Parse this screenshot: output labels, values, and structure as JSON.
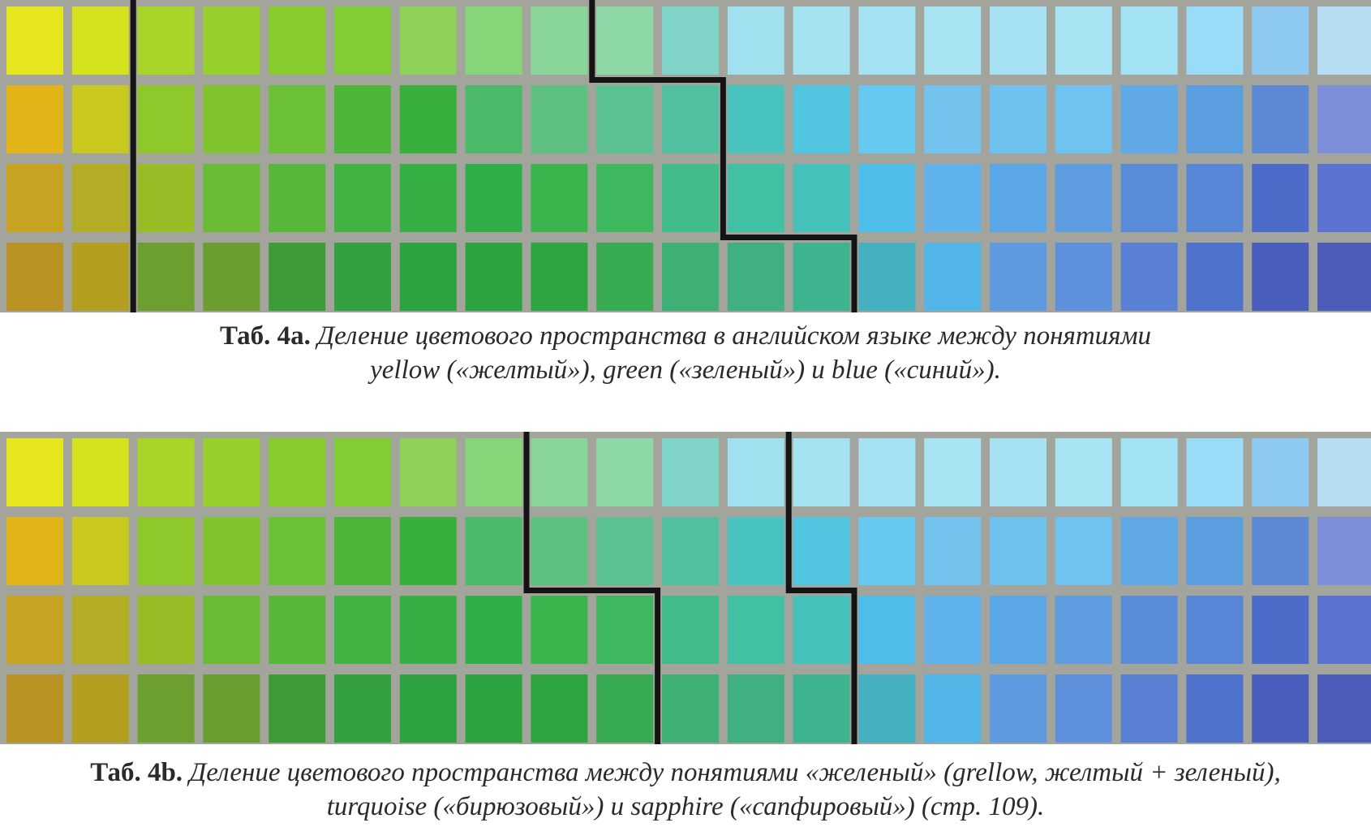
{
  "palette": [
    [
      "#e6e61f",
      "#d4e21e",
      "#a8d52a",
      "#97d02c",
      "#88cc2e",
      "#82cc36",
      "#8dd15a",
      "#86d578",
      "#8ad69a",
      "#8ed8a8",
      "#80d5c8",
      "#a1e0ee",
      "#a5e2f2",
      "#a4e2f4",
      "#a8e3f4",
      "#a6e2f4",
      "#a8e3f4",
      "#a4e2f5",
      "#98dcf7",
      "#8ecaef",
      "#b6dcf3"
    ],
    [
      "#e3b418",
      "#c8c81e",
      "#8fc82a",
      "#7fc42e",
      "#6cc036",
      "#4db53a",
      "#3ab03c",
      "#4cb86a",
      "#5ec080",
      "#5cc190",
      "#50c0a0",
      "#48c3c0",
      "#52c6e0",
      "#66c9f0",
      "#74c3ee",
      "#70c2ee",
      "#70c3f0",
      "#60a9e4",
      "#5a9ee0",
      "#5c88d4",
      "#7c8fd8"
    ],
    [
      "#c6a320",
      "#b2ad24",
      "#98bc26",
      "#6aba36",
      "#56b63a",
      "#42b240",
      "#36b044",
      "#2fae48",
      "#3ab54e",
      "#3db85e",
      "#40bc8a",
      "#42c0a4",
      "#46c0ba",
      "#4fbdea",
      "#60b2ec",
      "#5aa6e6",
      "#5e9ee0",
      "#5a8bd8",
      "#5886d6",
      "#4d6cca",
      "#5a72d0"
    ],
    [
      "#b89222",
      "#b49e20",
      "#6c9e30",
      "#6a9e30",
      "#3e9c38",
      "#35a040",
      "#2ea240",
      "#2aa340",
      "#2ea540",
      "#38aa52",
      "#3fb075",
      "#40b080",
      "#3db38f",
      "#44b0c0",
      "#51b5e8",
      "#5e9ae0",
      "#5f90dc",
      "#5a80d4",
      "#4f72cc",
      "#4a5ebe",
      "#4d5cb8"
    ]
  ],
  "fig_a": {
    "caption_label": "Таб. 4a.",
    "caption_line1": "Деление цветового пространства в английском языке между понятиями",
    "caption_line2": "yellow («желтый»), green («зеленый») и blue («синий»)."
  },
  "fig_b": {
    "caption_label": "Таб. 4b.",
    "caption_line1": "Деление цветового пространства между понятиями «желеный» (grellow, желтый + зеленый),",
    "caption_line2": "turquoise («бирюзовый») и sapphire («сапфировый») (стр. 109)."
  }
}
